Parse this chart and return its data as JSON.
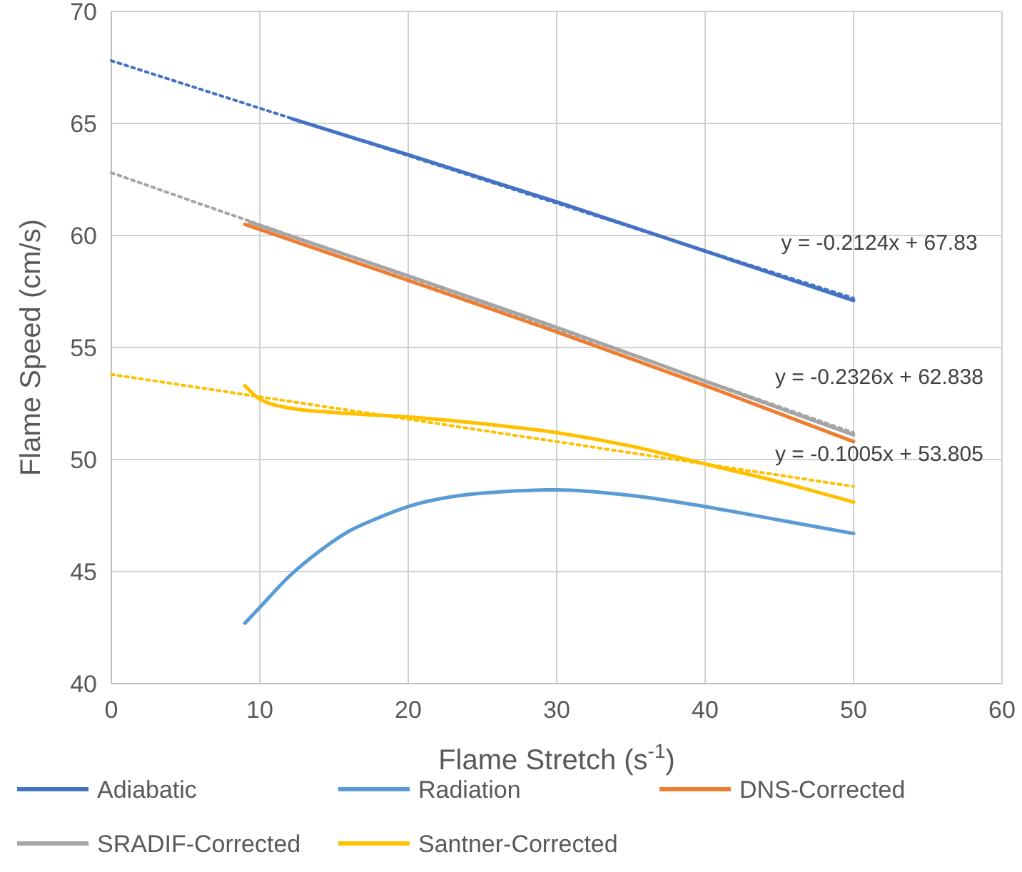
{
  "chart_data": {
    "type": "line",
    "xlabel": "Flame Stretch (s$^{-1}$)",
    "ylabel": "Flame Speed (cm/s)",
    "xlim": [
      0,
      60
    ],
    "xticks": [
      0,
      10,
      20,
      30,
      40,
      50,
      60
    ],
    "ylim": [
      40,
      70
    ],
    "yticks": [
      40,
      45,
      50,
      55,
      60,
      65,
      70
    ],
    "grid": true,
    "legend": "bottom",
    "line_style": "solid",
    "marker": "none",
    "series": [
      {
        "name": "Adiabatic",
        "color": "#4472c4",
        "x": [
          12.2,
          20,
          30,
          40,
          50
        ],
        "values": [
          65.2,
          63.6,
          61.5,
          59.3,
          57.1
        ]
      },
      {
        "name": "Radiation",
        "color": "#5b9bd5",
        "x": [
          9,
          10,
          12,
          14,
          16,
          18,
          20,
          25,
          30,
          35,
          40,
          45,
          50
        ],
        "values": [
          42.7,
          43.4,
          44.8,
          45.9,
          46.8,
          47.4,
          47.9,
          48.5,
          48.65,
          48.4,
          47.9,
          47.3,
          46.7
        ]
      },
      {
        "name": "DNS-Corrected",
        "color": "#ed7d31",
        "x": [
          9,
          20,
          30,
          40,
          50
        ],
        "values": [
          60.5,
          58.0,
          55.7,
          53.3,
          50.8
        ]
      },
      {
        "name": "SRADIF-Corrected",
        "color": "#a5a5a5",
        "x": [
          9.3,
          20,
          30,
          40,
          50
        ],
        "values": [
          60.6,
          58.2,
          55.9,
          53.5,
          51.1
        ]
      },
      {
        "name": "Santner-Corrected",
        "color": "#ffc000",
        "x": [
          9,
          10,
          12,
          15,
          20,
          25,
          30,
          35,
          40,
          45,
          50
        ],
        "values": [
          53.3,
          52.7,
          52.3,
          52.1,
          51.9,
          51.6,
          51.2,
          50.6,
          49.8,
          49.0,
          48.1
        ]
      },
      {
        "color": "#4472c4",
        "line_style": "dotted",
        "x": [
          0,
          50
        ],
        "values": [
          67.8,
          57.2
        ]
      },
      {
        "color": "#a5a5a5",
        "line_style": "dotted",
        "x": [
          0,
          50
        ],
        "values": [
          62.8,
          51.2
        ]
      },
      {
        "color": "#ffc000",
        "line_style": "dotted",
        "x": [
          0,
          50
        ],
        "values": [
          53.8,
          48.8
        ]
      }
    ],
    "annotations": [
      "y = -0.2124x + 67.83",
      "y = -0.2326x + 62.838",
      "y = -0.1005x + 53.805"
    ]
  }
}
